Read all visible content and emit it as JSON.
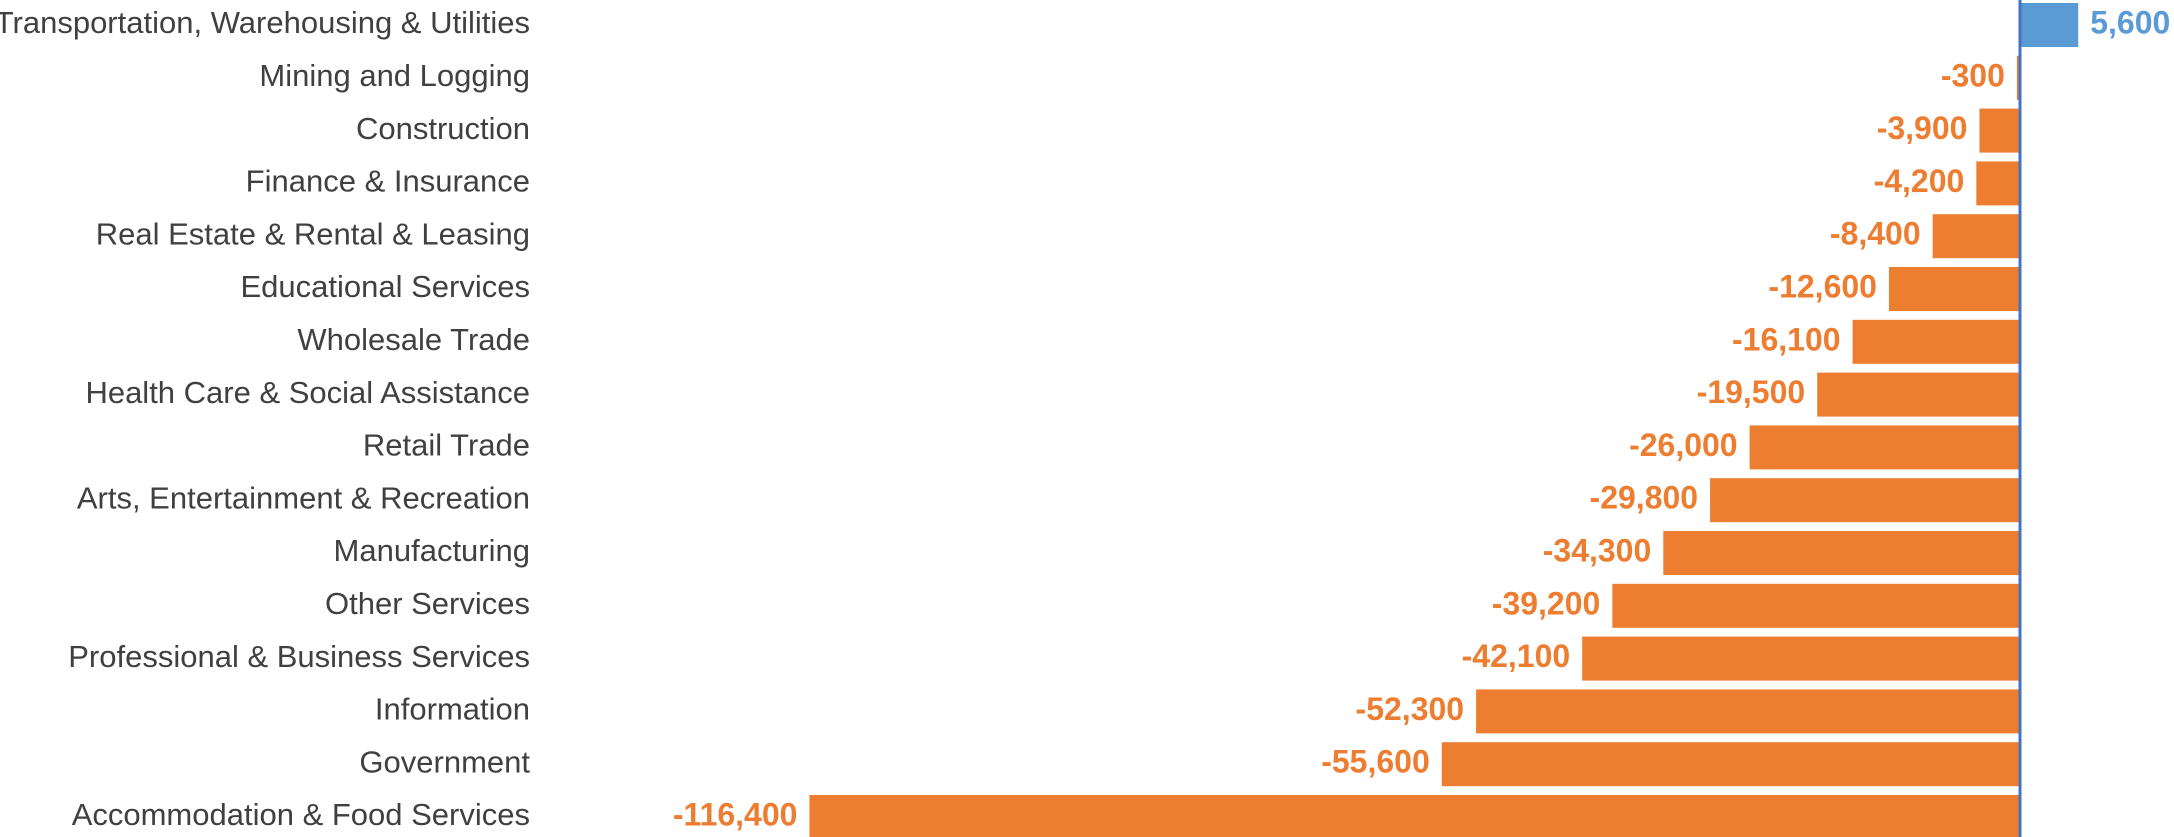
{
  "chart_data": {
    "type": "bar",
    "orientation": "horizontal",
    "title": "",
    "xlabel": "",
    "ylabel": "",
    "categories": [
      "Transportation, Warehousing & Utilities",
      "Mining and Logging",
      "Construction",
      "Finance & Insurance",
      "Real Estate & Rental & Leasing",
      "Educational Services",
      "Wholesale Trade",
      "Health Care & Social Assistance",
      "Retail Trade",
      "Arts, Entertainment & Recreation",
      "Manufacturing",
      "Other Services",
      "Professional & Business Services",
      "Information",
      "Government",
      "Accommodation & Food Services"
    ],
    "values": [
      5600,
      -300,
      -3900,
      -4200,
      -8400,
      -12600,
      -16100,
      -19500,
      -26000,
      -29800,
      -34300,
      -39200,
      -42100,
      -52300,
      -55600,
      -116400
    ],
    "value_labels": [
      "5,600",
      "-300",
      "-3,900",
      "-4,200",
      "-8,400",
      "-12,600",
      "-16,100",
      "-19,500",
      "-26,000",
      "-29,800",
      "-34,300",
      "-39,200",
      "-42,100",
      "-52,300",
      "-55,600",
      "-116,400"
    ],
    "colors": {
      "positive": "#5b9bd5",
      "negative": "#ed7d31",
      "axis": "#4472c4",
      "category_text": "#404040"
    },
    "grid": false,
    "legend": "none"
  }
}
